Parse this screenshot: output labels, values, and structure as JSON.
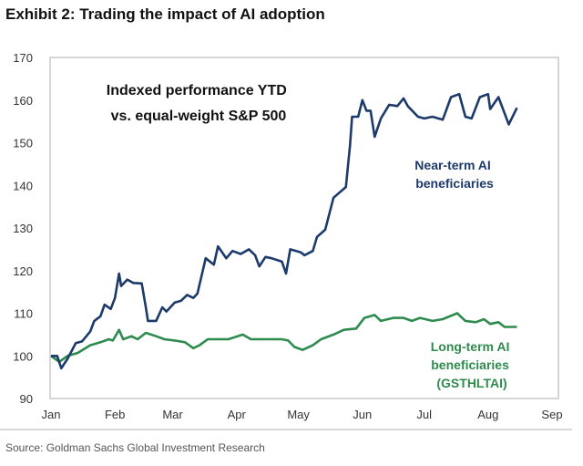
{
  "title": "Exhibit 2: Trading the impact of AI adoption",
  "source": "Source: Goldman Sachs Global Investment Research",
  "chart_data": {
    "type": "line",
    "subtitle_lines": [
      "Indexed performance YTD",
      "vs. equal-weight S&P 500"
    ],
    "ylim": [
      90,
      170
    ],
    "yticks": [
      90,
      100,
      110,
      120,
      130,
      140,
      150,
      160,
      170
    ],
    "xlim": [
      "2023-01-01",
      "2023-09-01"
    ],
    "xticks": [
      {
        "date": "2023-01-01",
        "label": "Jan"
      },
      {
        "date": "2023-02-01",
        "label": "Feb"
      },
      {
        "date": "2023-03-01",
        "label": "Mar"
      },
      {
        "date": "2023-04-01",
        "label": "Apr"
      },
      {
        "date": "2023-05-01",
        "label": "May"
      },
      {
        "date": "2023-06-01",
        "label": "Jun"
      },
      {
        "date": "2023-07-01",
        "label": "Jul"
      },
      {
        "date": "2023-08-01",
        "label": "Aug"
      },
      {
        "date": "2023-09-01",
        "label": "Sep"
      }
    ],
    "grid": false,
    "series": [
      {
        "name_lines": [
          "Near-term AI",
          "beneficiaries"
        ],
        "color": "#1c3a6a",
        "points": [
          [
            "2023-01-01",
            100
          ],
          [
            "2023-01-04",
            100
          ],
          [
            "2023-01-06",
            97.1
          ],
          [
            "2023-01-09",
            99.3
          ],
          [
            "2023-01-13",
            103
          ],
          [
            "2023-01-16",
            103.4
          ],
          [
            "2023-01-20",
            105.7
          ],
          [
            "2023-01-22",
            108.2
          ],
          [
            "2023-01-25",
            109.3
          ],
          [
            "2023-01-27",
            112
          ],
          [
            "2023-01-30",
            111
          ],
          [
            "2023-02-01",
            113.6
          ],
          [
            "2023-02-03",
            119.3
          ],
          [
            "2023-02-04",
            116.4
          ],
          [
            "2023-02-07",
            117.9
          ],
          [
            "2023-02-10",
            117.1
          ],
          [
            "2023-02-14",
            117
          ],
          [
            "2023-02-16",
            111.4
          ],
          [
            "2023-02-17",
            108.2
          ],
          [
            "2023-02-21",
            108.2
          ],
          [
            "2023-02-24",
            111.4
          ],
          [
            "2023-02-26",
            110.4
          ],
          [
            "2023-03-02",
            112.5
          ],
          [
            "2023-03-05",
            112.9
          ],
          [
            "2023-03-08",
            114.3
          ],
          [
            "2023-03-11",
            113.6
          ],
          [
            "2023-03-13",
            114.6
          ],
          [
            "2023-03-17",
            122.9
          ],
          [
            "2023-03-21",
            121.4
          ],
          [
            "2023-03-23",
            125.7
          ],
          [
            "2023-03-27",
            122.9
          ],
          [
            "2023-03-30",
            124.6
          ],
          [
            "2023-04-03",
            123.9
          ],
          [
            "2023-04-07",
            125
          ],
          [
            "2023-04-10",
            123.6
          ],
          [
            "2023-04-12",
            121
          ],
          [
            "2023-04-15",
            123.2
          ],
          [
            "2023-04-18",
            122.9
          ],
          [
            "2023-04-23",
            122.1
          ],
          [
            "2023-04-25",
            119.3
          ],
          [
            "2023-04-27",
            125
          ],
          [
            "2023-05-02",
            124.3
          ],
          [
            "2023-05-04",
            123.6
          ],
          [
            "2023-05-08",
            124.6
          ],
          [
            "2023-05-10",
            127.9
          ],
          [
            "2023-05-14",
            129.6
          ],
          [
            "2023-05-18",
            137.1
          ],
          [
            "2023-05-24",
            139.6
          ],
          [
            "2023-05-26",
            149.3
          ],
          [
            "2023-05-27",
            156.1
          ],
          [
            "2023-05-30",
            156.1
          ],
          [
            "2023-06-01",
            160
          ],
          [
            "2023-06-03",
            157.5
          ],
          [
            "2023-06-05",
            157.5
          ],
          [
            "2023-06-07",
            151.4
          ],
          [
            "2023-06-10",
            155.7
          ],
          [
            "2023-06-14",
            158.9
          ],
          [
            "2023-06-18",
            158.6
          ],
          [
            "2023-06-21",
            160.4
          ],
          [
            "2023-06-23",
            158.6
          ],
          [
            "2023-06-28",
            156.1
          ],
          [
            "2023-07-01",
            155.7
          ],
          [
            "2023-07-05",
            156.1
          ],
          [
            "2023-07-10",
            155.4
          ],
          [
            "2023-07-14",
            160.7
          ],
          [
            "2023-07-18",
            161.4
          ],
          [
            "2023-07-21",
            156.1
          ],
          [
            "2023-07-24",
            155.7
          ],
          [
            "2023-07-28",
            160.7
          ],
          [
            "2023-08-01",
            161.4
          ],
          [
            "2023-08-02",
            157.9
          ],
          [
            "2023-08-06",
            160.7
          ],
          [
            "2023-08-11",
            154.3
          ],
          [
            "2023-08-15",
            158.2
          ]
        ]
      },
      {
        "name_lines": [
          "Long-term AI",
          "beneficiaries",
          "(GSTHLTAI)"
        ],
        "color": "#2e8b4e",
        "points": [
          [
            "2023-01-01",
            100
          ],
          [
            "2023-01-05",
            98.6
          ],
          [
            "2023-01-09",
            100
          ],
          [
            "2023-01-14",
            100.7
          ],
          [
            "2023-01-20",
            102.5
          ],
          [
            "2023-01-25",
            103.2
          ],
          [
            "2023-01-29",
            103.9
          ],
          [
            "2023-01-31",
            103.6
          ],
          [
            "2023-02-03",
            106.1
          ],
          [
            "2023-02-05",
            103.9
          ],
          [
            "2023-02-09",
            104.6
          ],
          [
            "2023-02-12",
            103.9
          ],
          [
            "2023-02-16",
            105.4
          ],
          [
            "2023-02-21",
            104.6
          ],
          [
            "2023-02-25",
            103.9
          ],
          [
            "2023-03-02",
            103.6
          ],
          [
            "2023-03-07",
            103.2
          ],
          [
            "2023-03-11",
            101.8
          ],
          [
            "2023-03-14",
            102.5
          ],
          [
            "2023-03-18",
            103.9
          ],
          [
            "2023-03-23",
            103.9
          ],
          [
            "2023-03-28",
            103.9
          ],
          [
            "2023-04-04",
            105
          ],
          [
            "2023-04-08",
            103.9
          ],
          [
            "2023-04-15",
            103.9
          ],
          [
            "2023-04-23",
            103.9
          ],
          [
            "2023-04-26",
            103.6
          ],
          [
            "2023-04-29",
            102.1
          ],
          [
            "2023-05-03",
            101.4
          ],
          [
            "2023-05-08",
            102.5
          ],
          [
            "2023-05-12",
            103.9
          ],
          [
            "2023-05-18",
            105
          ],
          [
            "2023-05-23",
            106.1
          ],
          [
            "2023-05-29",
            106.4
          ],
          [
            "2023-06-02",
            108.9
          ],
          [
            "2023-06-07",
            109.6
          ],
          [
            "2023-06-10",
            108.2
          ],
          [
            "2023-06-16",
            108.9
          ],
          [
            "2023-06-21",
            108.9
          ],
          [
            "2023-06-25",
            108.2
          ],
          [
            "2023-06-29",
            108.9
          ],
          [
            "2023-07-05",
            108.2
          ],
          [
            "2023-07-10",
            108.6
          ],
          [
            "2023-07-17",
            110
          ],
          [
            "2023-07-21",
            108.2
          ],
          [
            "2023-07-26",
            107.9
          ],
          [
            "2023-07-30",
            108.6
          ],
          [
            "2023-08-02",
            107.5
          ],
          [
            "2023-08-06",
            107.9
          ],
          [
            "2023-08-09",
            106.8
          ],
          [
            "2023-08-15",
            106.8
          ]
        ]
      }
    ]
  }
}
